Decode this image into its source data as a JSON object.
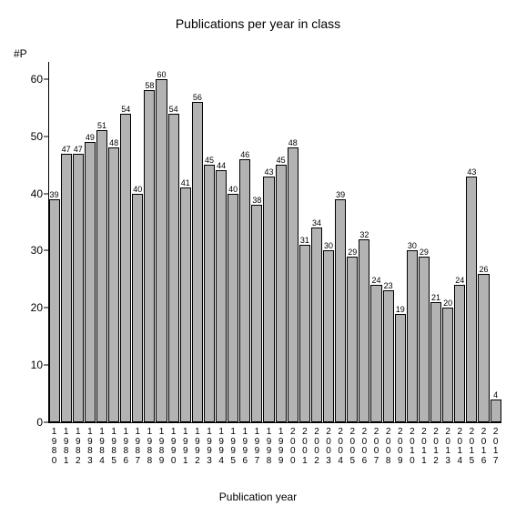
{
  "chart": {
    "type": "bar",
    "title": "Publications per year in class",
    "title_fontsize": 14,
    "ylabel": "#P",
    "xlabel": "Publication year",
    "label_fontsize": 12,
    "background_color": "#ffffff",
    "axis_color": "#000000",
    "bar_fill_color": "#b3b3b3",
    "bar_border_color": "#000000",
    "value_label_fontsize": 9,
    "tick_label_fontsize": 12,
    "xtick_label_fontsize": 10,
    "ylim": [
      0,
      63
    ],
    "yticks": [
      0,
      10,
      20,
      30,
      40,
      50,
      60
    ],
    "categories": [
      "1980",
      "1981",
      "1982",
      "1983",
      "1984",
      "1985",
      "1986",
      "1987",
      "1988",
      "1989",
      "1990",
      "1991",
      "1992",
      "1993",
      "1994",
      "1995",
      "1996",
      "1997",
      "1998",
      "1999",
      "2000",
      "2001",
      "2002",
      "2003",
      "2004",
      "2005",
      "2006",
      "2007",
      "2008",
      "2009",
      "2010",
      "2011",
      "2012",
      "2013",
      "2014",
      "2015",
      "2016",
      "2017"
    ],
    "values": [
      39,
      47,
      47,
      49,
      51,
      48,
      54,
      40,
      58,
      60,
      54,
      41,
      56,
      45,
      44,
      40,
      46,
      38,
      43,
      45,
      48,
      31,
      34,
      30,
      39,
      29,
      32,
      24,
      23,
      19,
      30,
      29,
      21,
      20,
      24,
      43,
      26,
      4
    ],
    "bar_width": 1.0,
    "show_value_labels": true
  }
}
